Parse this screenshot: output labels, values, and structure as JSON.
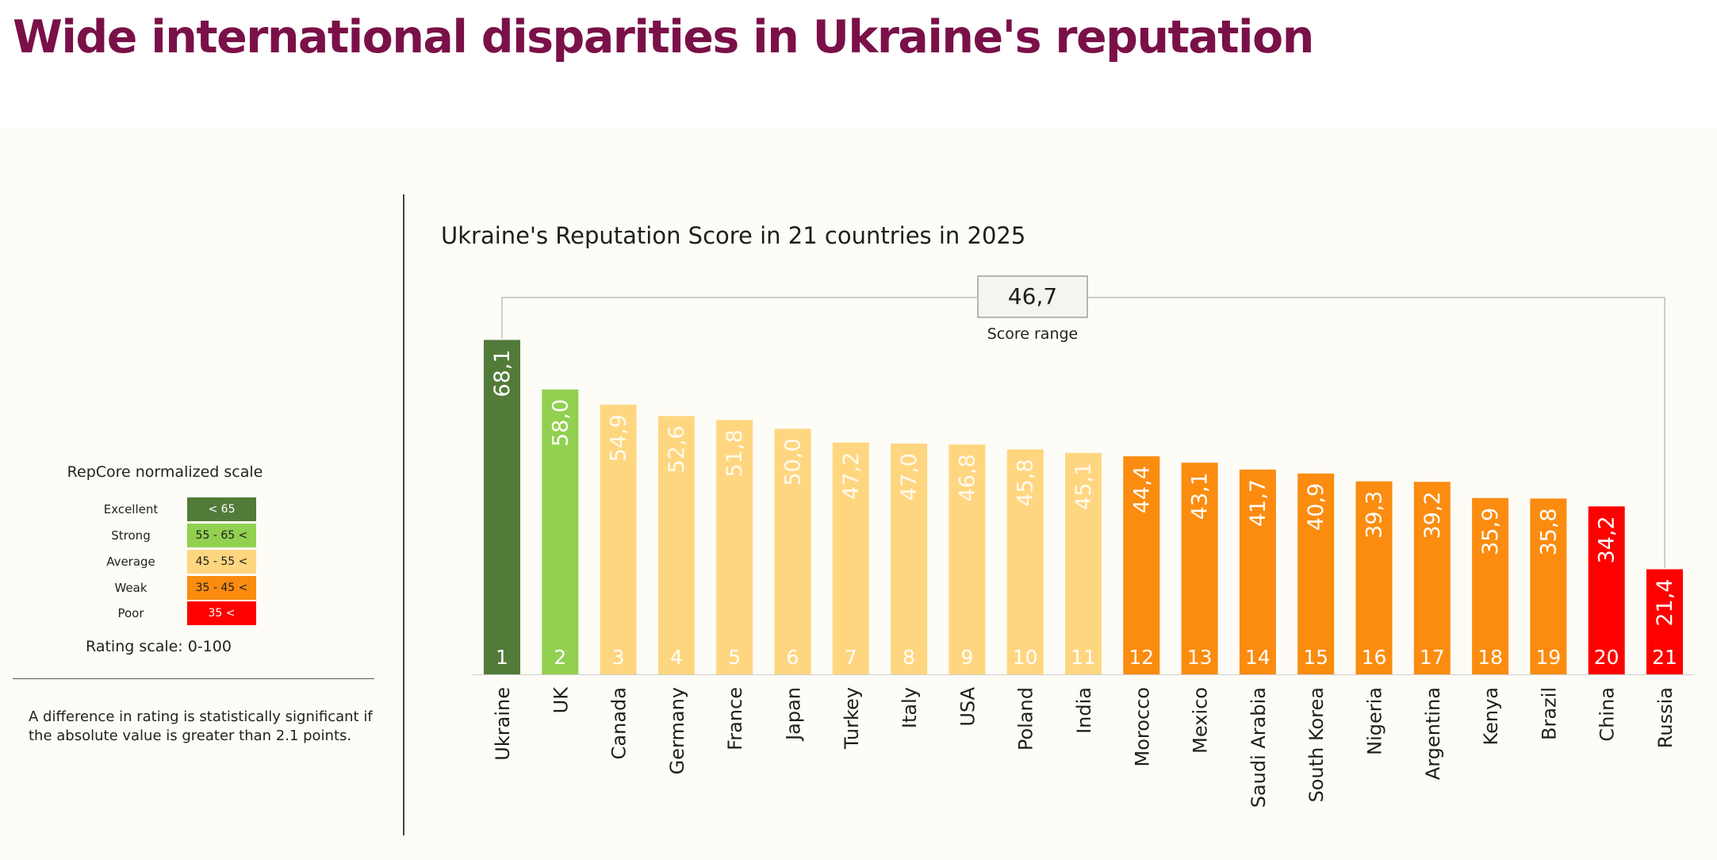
{
  "headline": "Wide international disparities in Ukraine's reputation",
  "legend": {
    "title": "RepCore normalized scale",
    "items": [
      {
        "label": "Excellent",
        "range": "< 65",
        "color": "#527b3a",
        "text_color": "#ffffff"
      },
      {
        "label": "Strong",
        "range": "55 - 65 <",
        "color": "#92d050",
        "text_color": "#1e1e1e"
      },
      {
        "label": "Average",
        "range": "45 - 55 <",
        "color": "#ffd680",
        "text_color": "#1e1e1e"
      },
      {
        "label": "Weak",
        "range": "35 - 45 <",
        "color": "#fb8c0f",
        "text_color": "#1e1e1e"
      },
      {
        "label": "Poor",
        "range": "35 <",
        "color": "#ff0000",
        "text_color": "#ffffff"
      }
    ],
    "scale_note": "Rating scale: 0-100"
  },
  "footnote": "A difference in rating is statistically significant if the absolute value is greater than  2.1 points.",
  "chart_data": {
    "type": "bar",
    "title": "Ukraine's Reputation Score  in 21 countries in 2025",
    "xlabel": "",
    "ylabel": "",
    "ylim": [
      0,
      100
    ],
    "grid": false,
    "categories": [
      "Ukraine",
      "UK",
      "Canada",
      "Germany",
      "France",
      "Japan",
      "Turkey",
      "Italy",
      "USA",
      "Poland",
      "India",
      "Morocco",
      "Mexico",
      "Saudi Arabia",
      "South Korea",
      "Nigeria",
      "Argentina",
      "Kenya",
      "Brazil",
      "China",
      "Russia"
    ],
    "values": [
      68.1,
      58.0,
      54.9,
      52.6,
      51.8,
      50.0,
      47.2,
      47.0,
      46.8,
      45.8,
      45.1,
      44.4,
      43.1,
      41.7,
      40.9,
      39.3,
      39.2,
      35.9,
      35.8,
      34.2,
      21.4
    ],
    "value_labels": [
      "68,1",
      "58,0",
      "54,9",
      "52,6",
      "51,8",
      "50,0",
      "47,2",
      "47,0",
      "46,8",
      "45,8",
      "45,1",
      "44,4",
      "43,1",
      "41,7",
      "40,9",
      "39,3",
      "39,2",
      "35,9",
      "35,8",
      "34,2",
      "21,4"
    ],
    "ranks": [
      "1",
      "2",
      "3",
      "4",
      "5",
      "6",
      "7",
      "8",
      "9",
      "10",
      "11",
      "12",
      "13",
      "14",
      "15",
      "16",
      "17",
      "18",
      "19",
      "20",
      "21"
    ],
    "bar_colors": [
      "#527b3a",
      "#92d050",
      "#ffd680",
      "#ffd680",
      "#ffd680",
      "#ffd680",
      "#ffd680",
      "#ffd680",
      "#ffd680",
      "#ffd680",
      "#ffd680",
      "#fb8c0f",
      "#fb8c0f",
      "#fb8c0f",
      "#fb8c0f",
      "#fb8c0f",
      "#fb8c0f",
      "#fb8c0f",
      "#fb8c0f",
      "#ff0000",
      "#ff0000"
    ],
    "score_range": {
      "value": "46,7",
      "label": "Score range"
    }
  }
}
